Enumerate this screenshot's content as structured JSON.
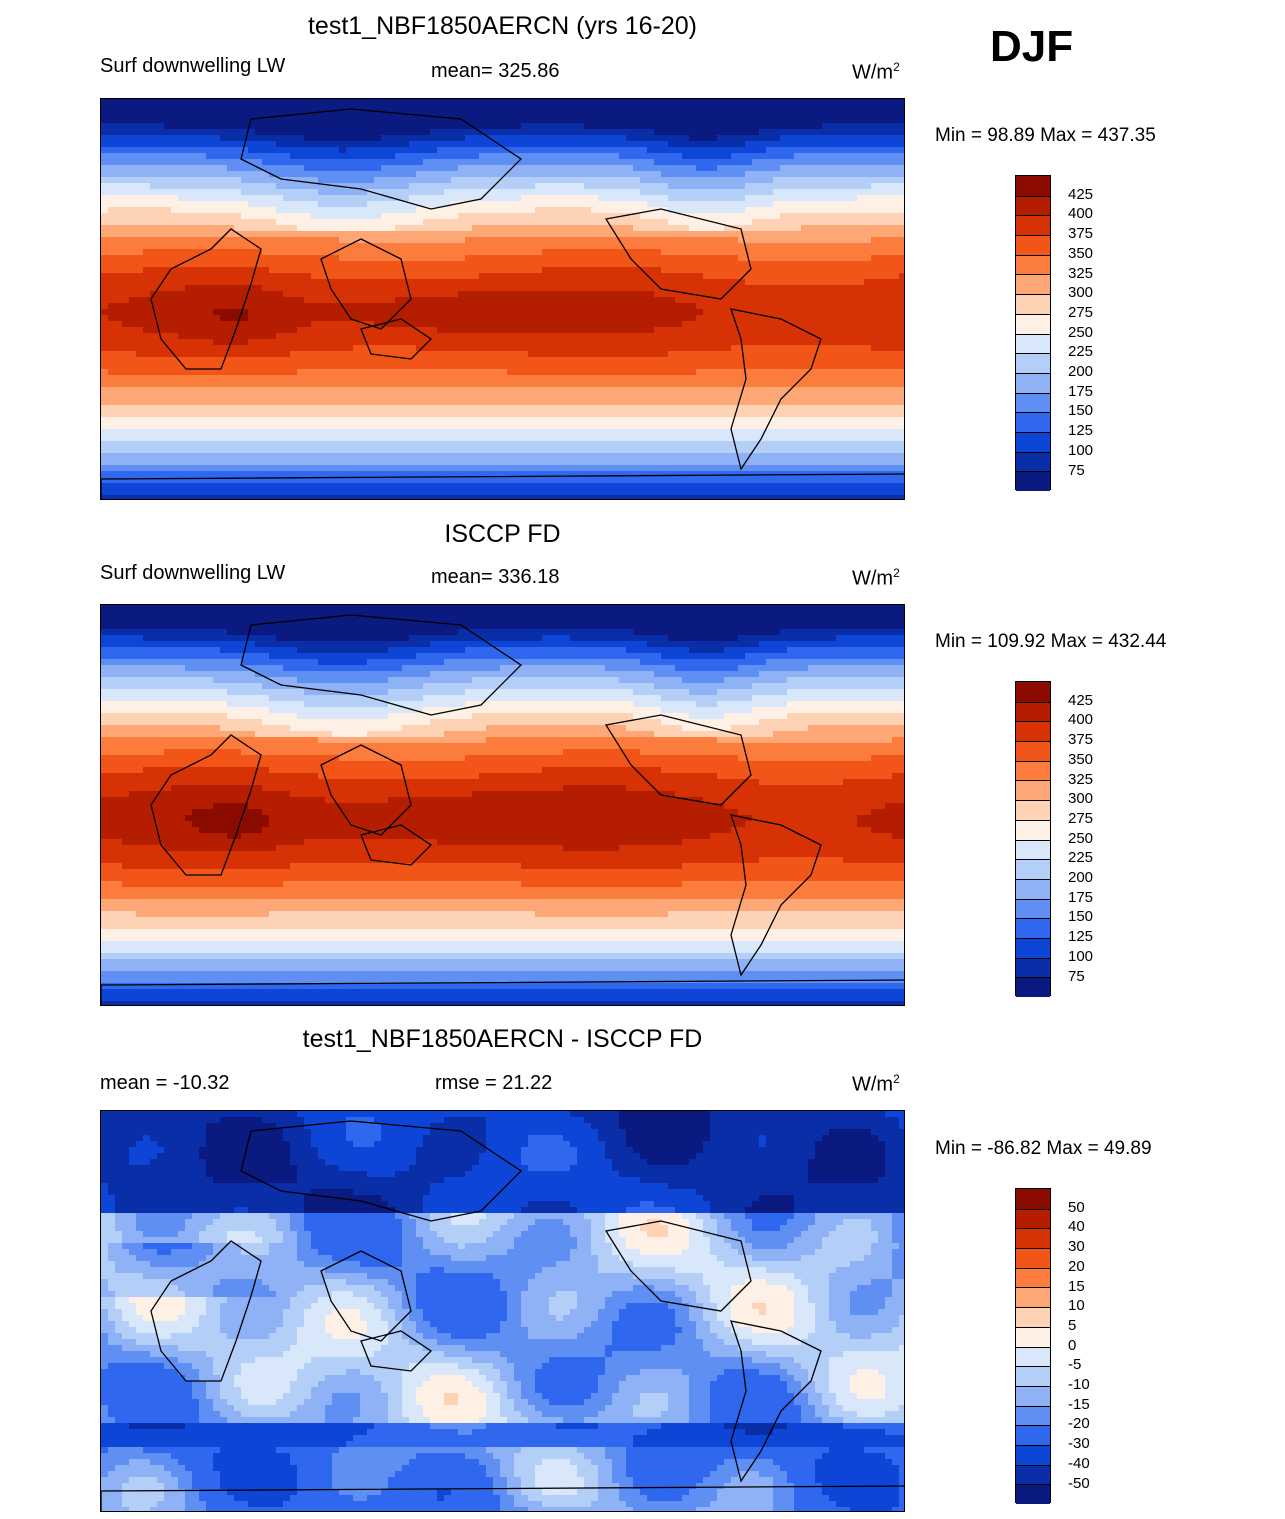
{
  "season": "DJF",
  "units_text": "W/m",
  "units_sup": "2",
  "panels": [
    {
      "title": "test1_NBF1850AERCN (yrs 16-20)",
      "left_label": "Surf downwelling LW",
      "center_label": "mean= 325.86",
      "minmax": "Min =  98.89 Max = 437.35",
      "colorbar": {
        "labels": [
          "425",
          "400",
          "375",
          "350",
          "325",
          "300",
          "275",
          "250",
          "225",
          "200",
          "175",
          "150",
          "125",
          "100",
          "75"
        ],
        "colors": [
          "#8b0b00",
          "#b41d00",
          "#d73205",
          "#f25518",
          "#fb7c3c",
          "#fda676",
          "#fed3b5",
          "#fff0e6",
          "#d8e7fa",
          "#b3cff7",
          "#8eb2f5",
          "#5f8ff2",
          "#2f68ef",
          "#0d45d6",
          "#0a2da8",
          "#0a1a80"
        ]
      },
      "chart_data": {
        "type": "heatmap",
        "title": "test1_NBF1850AERCN (yrs 16-20)",
        "variable": "Surf downwelling LW",
        "units": "W/m2",
        "mean": 325.86,
        "min": 98.89,
        "max": 437.35,
        "contour_levels": [
          75,
          100,
          125,
          150,
          175,
          200,
          225,
          250,
          275,
          300,
          325,
          350,
          375,
          400,
          425
        ],
        "bias_lat": 0,
        "amp": 1.0
      }
    },
    {
      "title": "ISCCP FD",
      "left_label": "Surf downwelling LW",
      "center_label": "mean= 336.18",
      "minmax": "Min = 109.92 Max = 432.44",
      "colorbar": {
        "labels": [
          "425",
          "400",
          "375",
          "350",
          "325",
          "300",
          "275",
          "250",
          "225",
          "200",
          "175",
          "150",
          "125",
          "100",
          "75"
        ],
        "colors": [
          "#8b0b00",
          "#b41d00",
          "#d73205",
          "#f25518",
          "#fb7c3c",
          "#fda676",
          "#fed3b5",
          "#fff0e6",
          "#d8e7fa",
          "#b3cff7",
          "#8eb2f5",
          "#5f8ff2",
          "#2f68ef",
          "#0d45d6",
          "#0a2da8",
          "#0a1a80"
        ]
      },
      "chart_data": {
        "type": "heatmap",
        "title": "ISCCP FD",
        "variable": "Surf downwelling LW",
        "units": "W/m2",
        "mean": 336.18,
        "min": 109.92,
        "max": 432.44,
        "contour_levels": [
          75,
          100,
          125,
          150,
          175,
          200,
          225,
          250,
          275,
          300,
          325,
          350,
          375,
          400,
          425
        ],
        "bias_lat": 0,
        "amp": 1.0
      }
    },
    {
      "title": "test1_NBF1850AERCN - ISCCP FD",
      "left_label": "mean = -10.32",
      "center_label": "rmse =  21.22",
      "minmax": "Min = -86.82 Max =  49.89",
      "colorbar": {
        "labels": [
          "50",
          "40",
          "30",
          "20",
          "15",
          "10",
          "5",
          "0",
          "-5",
          "-10",
          "-15",
          "-20",
          "-30",
          "-40",
          "-50"
        ],
        "colors": [
          "#8b0b00",
          "#b41d00",
          "#d73205",
          "#f25518",
          "#fb7c3c",
          "#fda676",
          "#fed3b5",
          "#fff0e6",
          "#d8e7fa",
          "#b3cff7",
          "#8eb2f5",
          "#5f8ff2",
          "#2f68ef",
          "#0d45d6",
          "#0a2da8",
          "#0a1a80"
        ]
      },
      "chart_data": {
        "type": "heatmap",
        "title": "test1_NBF1850AERCN - ISCCP FD",
        "units": "W/m2",
        "mean": -10.32,
        "rmse": 21.22,
        "min": -86.82,
        "max": 49.89,
        "contour_levels": [
          -50,
          -40,
          -30,
          -20,
          -15,
          -10,
          -5,
          0,
          5,
          10,
          15,
          20,
          30,
          40,
          50
        ],
        "difference": true
      }
    }
  ]
}
